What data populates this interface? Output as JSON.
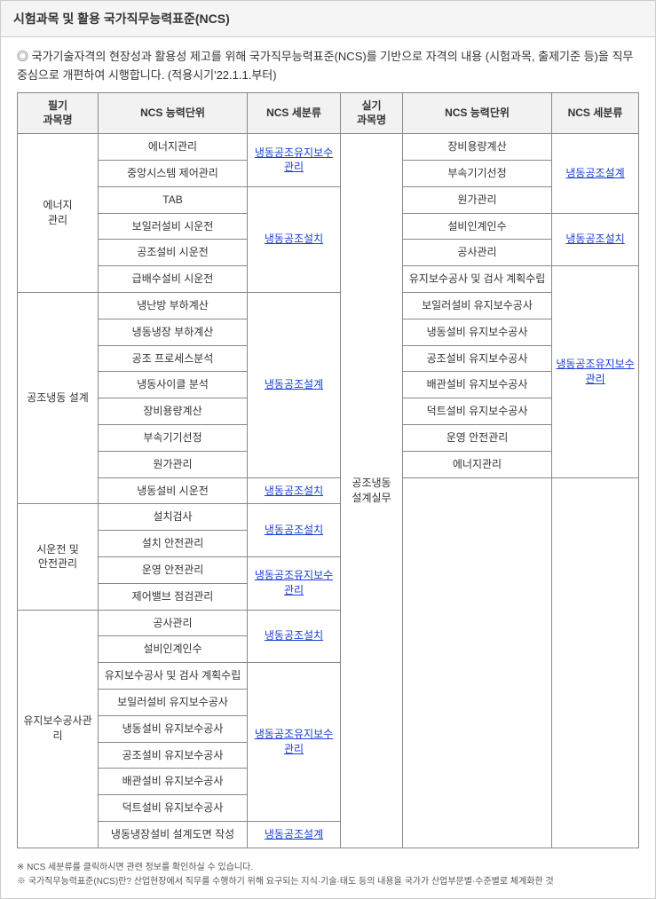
{
  "title": "시험과목 및 활용 국가직무능력표준(NCS)",
  "intro": "◎ 국가기술자격의 현장성과 활용성 제고를 위해 국가직무능력표준(NCS)를 기반으로 자격의 내용 (시험과목, 출제기준 등)을 직무 중심으로 개편하여 시행합니다. (적용시기'22.1.1.부터)",
  "headers": {
    "left_subject": "필기\n과목명",
    "ncs_unit": "NCS 능력단위",
    "ncs_cat": "NCS 세분류",
    "right_subject": "실기\n과목명"
  },
  "cats": {
    "maint": "냉동공조유지보수관리",
    "install": "냉동공조설치",
    "design": "냉동공조설계"
  },
  "right_subject": "공조냉동\n설계실무",
  "left": [
    {
      "subject": "에너지\n관리",
      "rows": [
        {
          "unit": "에너지관리",
          "cat": "maint",
          "cat_rowspan": 2
        },
        {
          "unit": "중앙시스템 제어관리"
        },
        {
          "unit": "TAB",
          "cat": "install",
          "cat_rowspan": 4
        },
        {
          "unit": "보일러설비 시운전"
        },
        {
          "unit": "공조설비 시운전"
        },
        {
          "unit": "급배수설비 시운전"
        }
      ]
    },
    {
      "subject": "공조냉동 설계",
      "rows": [
        {
          "unit": "냉난방 부하계산",
          "cat": "design",
          "cat_rowspan": 7
        },
        {
          "unit": "냉동냉장 부하계산"
        },
        {
          "unit": "공조 프로세스분석"
        },
        {
          "unit": "냉동사이클 분석"
        },
        {
          "unit": "장비용량계산"
        },
        {
          "unit": "부속기기선정"
        },
        {
          "unit": "원가관리"
        },
        {
          "unit": "냉동설비 시운전",
          "cat": "install",
          "cat_rowspan": 1
        }
      ]
    },
    {
      "subject": "시운전 및\n안전관리",
      "rows": [
        {
          "unit": "설치검사",
          "cat": "install",
          "cat_rowspan": 2
        },
        {
          "unit": "설치 안전관리"
        },
        {
          "unit": "운영 안전관리",
          "cat": "maint",
          "cat_rowspan": 2
        },
        {
          "unit": "제어밸브 점검관리"
        }
      ]
    },
    {
      "subject": "유지보수공사관리",
      "rows": [
        {
          "unit": "공사관리",
          "cat": "install",
          "cat_rowspan": 2
        },
        {
          "unit": "설비인계인수"
        },
        {
          "unit": "유지보수공사 및 검사 계획수립",
          "cat": "maint",
          "cat_rowspan": 6
        },
        {
          "unit": "보일러설비 유지보수공사"
        },
        {
          "unit": "냉동설비 유지보수공사"
        },
        {
          "unit": "공조설비 유지보수공사"
        },
        {
          "unit": "배관설비 유지보수공사"
        },
        {
          "unit": "덕트설비 유지보수공사"
        },
        {
          "unit": "냉동냉장설비 설계도면 작성",
          "cat": "design",
          "cat_rowspan": 1
        }
      ]
    }
  ],
  "right": [
    {
      "unit": "장비용량계산",
      "cat": "design",
      "cat_rowspan": 3
    },
    {
      "unit": "부속기기선정"
    },
    {
      "unit": "원가관리"
    },
    {
      "unit": "설비인계인수",
      "cat": "install",
      "cat_rowspan": 2
    },
    {
      "unit": "공사관리"
    },
    {
      "unit": "유지보수공사 및 검사 계획수립",
      "cat": "maint",
      "cat_rowspan": 8
    },
    {
      "unit": "보일러설비 유지보수공사"
    },
    {
      "unit": "냉동설비 유지보수공사"
    },
    {
      "unit": "공조설비 유지보수공사"
    },
    {
      "unit": "배관설비 유지보수공사"
    },
    {
      "unit": "덕트설비 유지보수공사"
    },
    {
      "unit": "운영 안전관리"
    },
    {
      "unit": "에너지관리"
    }
  ],
  "notes": [
    "※ NCS 세분류를 클릭하시면 관련 정보를 확인하실 수 있습니다.",
    "※ 국가직무능력표준(NCS)란? 산업현장에서 직무를 수행하기 위해 요구되는 지식·기술·태도 등의 내용을 국가가 산업부문별·수준별로 체계화한 것"
  ]
}
